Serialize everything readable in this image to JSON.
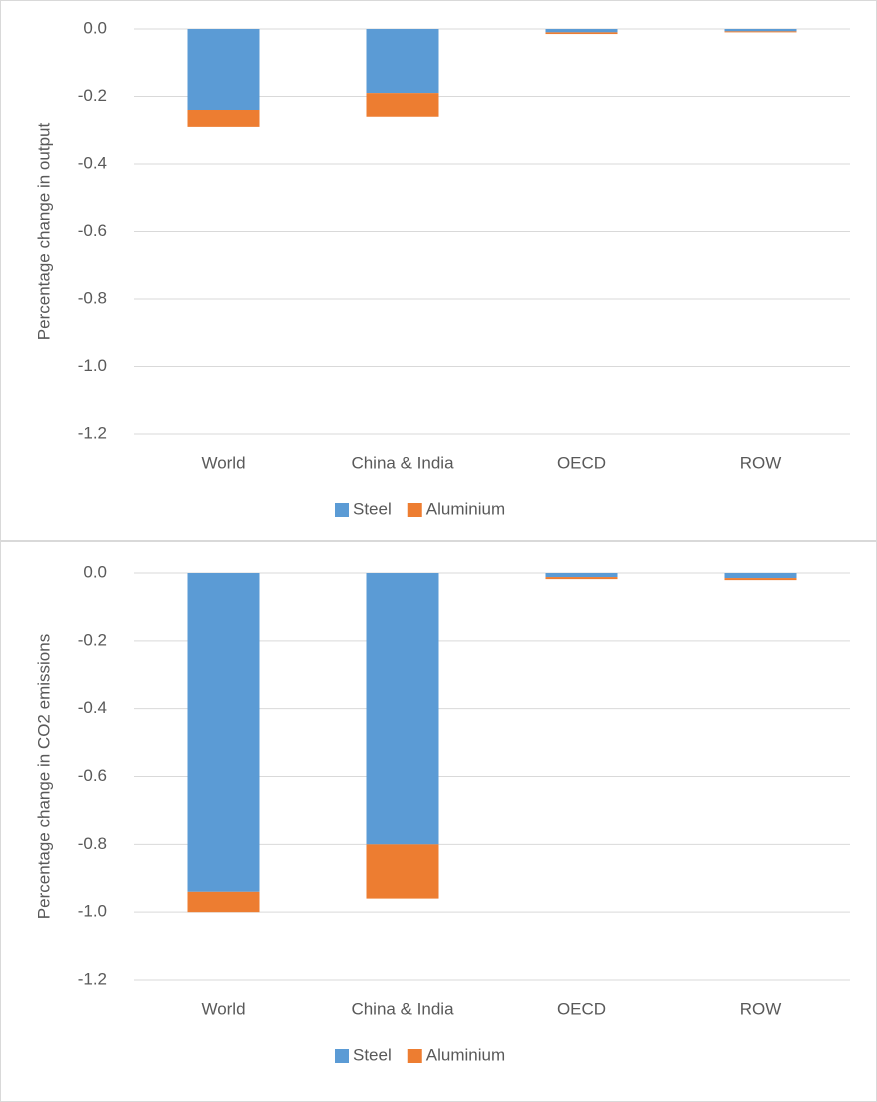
{
  "chart_data": [
    {
      "type": "stacked_bar",
      "y_label": "Percentage change in output",
      "categories": [
        "World",
        "China & India",
        "OECD",
        "ROW"
      ],
      "series": [
        {
          "name": "Steel",
          "color": "#5b9bd5",
          "values": [
            -0.24,
            -0.19,
            -0.01,
            -0.007
          ]
        },
        {
          "name": "Aluminium",
          "color": "#ed7d31",
          "values": [
            -0.05,
            -0.07,
            -0.005,
            -0.003
          ]
        }
      ],
      "ylim": [
        -1.2,
        0
      ],
      "yticks": [
        {
          "value": 0,
          "label": "0.0"
        },
        -0.2,
        -0.4,
        -0.6,
        -0.8,
        {
          "value": -1,
          "label": "-1.0"
        },
        -1.2
      ],
      "grid": true,
      "legend": "bottom"
    },
    {
      "type": "stacked_bar",
      "y_label": "Percentage change in CO2 emissions",
      "categories": [
        "World",
        "China & India",
        "OECD",
        "ROW"
      ],
      "series": [
        {
          "name": "Steel",
          "color": "#5b9bd5",
          "values": [
            -0.94,
            -0.8,
            -0.012,
            -0.015
          ]
        },
        {
          "name": "Aluminium",
          "color": "#ed7d31",
          "values": [
            -0.06,
            -0.16,
            -0.006,
            -0.006
          ]
        }
      ],
      "ylim": [
        -1.2,
        0
      ],
      "yticks": [
        {
          "value": 0,
          "label": "0.0"
        },
        -0.2,
        -0.4,
        -0.6,
        -0.8,
        {
          "value": -1,
          "label": "-1.0"
        },
        -1.2
      ],
      "grid": true,
      "legend": "bottom"
    }
  ]
}
